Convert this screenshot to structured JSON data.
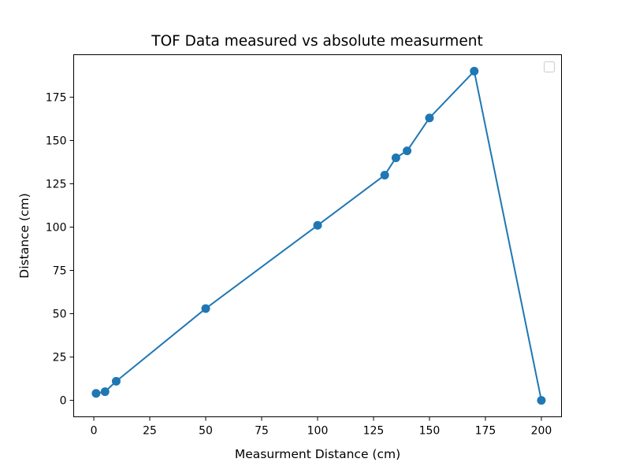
{
  "chart_data": {
    "type": "line",
    "title": "TOF Data measured vs absolute measurment",
    "xlabel": "Measurment Distance (cm)",
    "ylabel": "Distance (cm)",
    "xlim": [
      -9,
      209
    ],
    "ylim": [
      -9.5,
      199.5
    ],
    "xticks": [
      0,
      25,
      50,
      75,
      100,
      125,
      150,
      175,
      200
    ],
    "yticks": [
      0,
      25,
      50,
      75,
      100,
      125,
      150,
      175
    ],
    "grid": false,
    "legend": "top-right",
    "series": [
      {
        "color": "#1f77b4",
        "marker": "circle",
        "x": [
          1,
          5,
          10,
          50,
          100,
          130,
          135,
          140,
          150,
          170,
          200
        ],
        "y": [
          4,
          5,
          11,
          53,
          101,
          130,
          140,
          144,
          163,
          190,
          0
        ]
      }
    ]
  }
}
